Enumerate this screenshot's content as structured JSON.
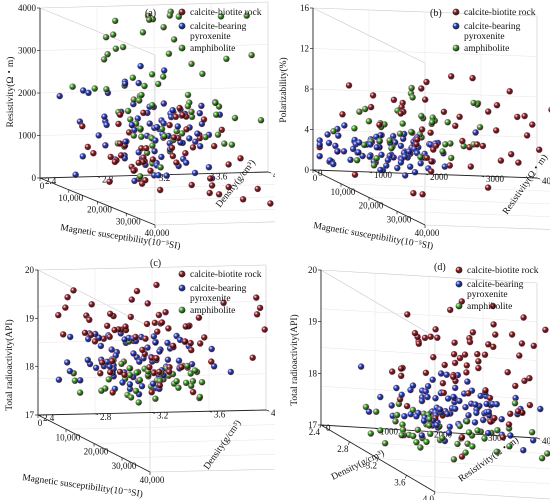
{
  "chart_data": [
    {
      "type": "scatter3d",
      "panel_label": "(a)",
      "xlabel": "Magnetic susceptibility(10⁻⁵SI)",
      "ylabel": "Density(g/cm³)",
      "zlabel": "Resistivity(Ω・m)",
      "xlim": [
        0,
        40000
      ],
      "ylim": [
        2.4,
        4.0
      ],
      "zlim": [
        0,
        4000
      ],
      "x_ticks": [
        "0",
        "10,000",
        "20,000",
        "30,000",
        "40,000"
      ],
      "y_ticks": [
        "2.4",
        "2.8",
        "3.2",
        "3.6",
        "4.0"
      ],
      "z_ticks": [
        "0",
        "1000",
        "2000",
        "3000",
        "4000"
      ],
      "legend": [
        "calcite-biotite rock",
        "calcite-bearing pyroxenite",
        "amphibolite"
      ]
    },
    {
      "type": "scatter3d",
      "panel_label": "(b)",
      "xlabel": "Magnetic susceptibility(10⁻⁵SI)",
      "ylabel": "Resistivity(Ω・m)",
      "zlabel": "Polarizability(%)",
      "xlim": [
        0,
        40000
      ],
      "ylim": [
        0,
        4000
      ],
      "zlim": [
        0,
        16
      ],
      "x_ticks": [
        "0",
        "10,000",
        "20,000",
        "30,000",
        "40,000"
      ],
      "y_ticks": [
        "0",
        "1000",
        "2000",
        "3000",
        "4000"
      ],
      "z_ticks": [
        "0",
        "4",
        "8",
        "12",
        "16"
      ],
      "legend": [
        "calcite-biotite rock",
        "calcite-bearing pyroxenite",
        "amphibolite"
      ]
    },
    {
      "type": "scatter3d",
      "panel_label": "(c)",
      "xlabel": "Magnetic susceptibility(10⁻⁵SI)",
      "ylabel": "Density(g/cm³)",
      "zlabel": "Total radioactivity(API)",
      "xlim": [
        0,
        40000
      ],
      "ylim": [
        2.4,
        4.0
      ],
      "zlim": [
        17,
        20
      ],
      "x_ticks": [
        "0",
        "10,000",
        "20,000",
        "30,000",
        "40,000"
      ],
      "y_ticks": [
        "2.4",
        "2.8",
        "3.2",
        "3.6",
        "4.0"
      ],
      "z_ticks": [
        "17",
        "18",
        "19",
        "20"
      ],
      "legend": [
        "calcite-biotite rock",
        "calcite-bearing pyroxenite",
        "amphibolite"
      ]
    },
    {
      "type": "scatter3d",
      "panel_label": "(d)",
      "xlabel": "Density(g/cm³)",
      "ylabel": "Resistivity(Ω・m)",
      "zlabel": "Total radioactivity(API)",
      "xlim": [
        2.4,
        4.0
      ],
      "ylim": [
        0,
        4000
      ],
      "zlim": [
        17,
        20
      ],
      "x_ticks": [
        "2.4",
        "2.8",
        "3.2",
        "3.6",
        "4.0"
      ],
      "y_ticks": [
        "0",
        "1000",
        "2000",
        "3000",
        "4000"
      ],
      "z_ticks": [
        "17",
        "18",
        "19",
        "20"
      ],
      "legend": [
        "calcite-biotite rock",
        "calcite-bearing pyroxenite",
        "amphibolite"
      ]
    }
  ],
  "series_colors": {
    "calcite-biotite rock": "#8b1a1a",
    "calcite-bearing pyroxenite": "#1f3fbf",
    "amphibolite": "#3fa02a"
  }
}
